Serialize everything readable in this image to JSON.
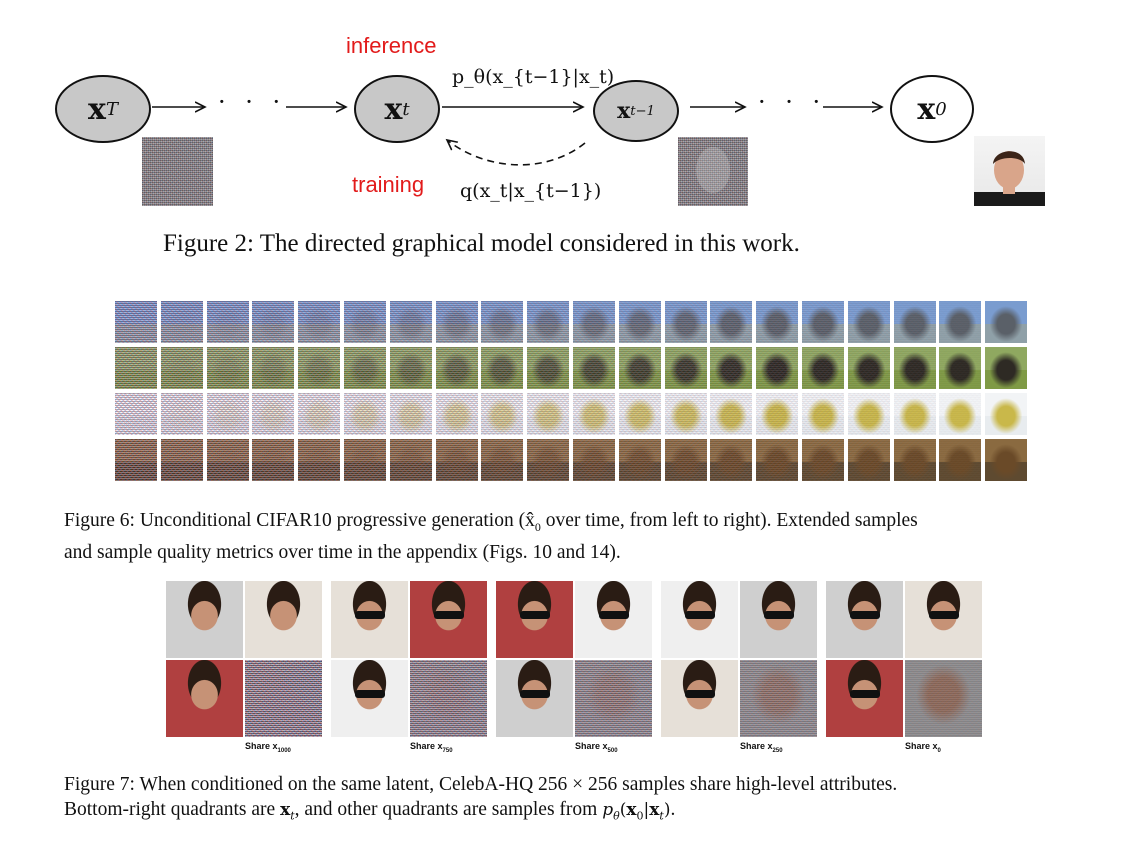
{
  "figure2": {
    "nodes": {
      "xT": {
        "base": "x",
        "sub": "T"
      },
      "xt": {
        "base": "x",
        "sub": "t"
      },
      "xtm1": {
        "base": "x",
        "sub": "t−1"
      },
      "x0": {
        "base": "x",
        "sub": "0"
      }
    },
    "dots": "· · ·",
    "label_inference": "inference",
    "label_training": "training",
    "p_label": "p_θ(x_{t−1}|x_t)",
    "q_label": "q(x_t|x_{t−1})",
    "caption_label": "Figure 2:",
    "caption_text": "The directed graphical model considered in this work."
  },
  "figure6": {
    "rows": 4,
    "cols": 20,
    "caption_label": "Figure 6:",
    "caption_text_1": "Unconditional CIFAR10 progressive generation (x̂",
    "caption_sub": "0",
    "caption_text_2": "over time, from left to right). Extended samples",
    "caption_line2": "and sample quality metrics over time in the appendix (Figs. 10 and 14)."
  },
  "figure7": {
    "panels": [
      {
        "share": "Share x",
        "sub": "1000"
      },
      {
        "share": "Share x",
        "sub": "750"
      },
      {
        "share": "Share x",
        "sub": "500"
      },
      {
        "share": "Share x",
        "sub": "250"
      },
      {
        "share": "Share x",
        "sub": "0"
      }
    ],
    "caption_label": "Figure 7:",
    "caption_line1": "When conditioned on the same latent, CelebA-HQ 256 × 256 samples share high-level attributes.",
    "caption_line2_a": "Bottom-right quadrants are",
    "caption_line2_b": ", and other quadrants are samples from",
    "caption_line2_c": "."
  },
  "colors": {
    "red": "#e21b1b",
    "node_gray": "#c8c8c8"
  }
}
